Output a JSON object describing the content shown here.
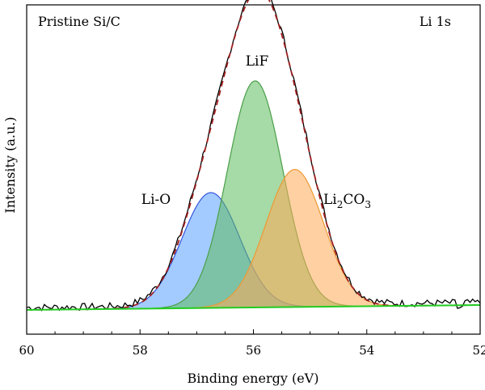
{
  "chart_data": {
    "type": "area",
    "panel_label": "Pristine Si/C",
    "spectrum_label": "Li 1s",
    "xlabel": "Binding energy (eV)",
    "ylabel": "Intensity (a.u.)",
    "xlim": [
      60,
      52
    ],
    "x_reversed": true,
    "x_ticks": [
      "60",
      "58",
      "56",
      "54",
      "52"
    ],
    "y_ticks_labeled": false,
    "grid": false,
    "legend": "none",
    "background": {
      "name": "baseline",
      "color": "#22cc22",
      "y_at_60": 0.0,
      "y_at_52": 0.012
    },
    "peaks": [
      {
        "label": "Li-O",
        "center": 56.75,
        "height": 0.285,
        "fwhm": 1.2,
        "fill": "#5aa0ff",
        "stroke": "#3355dd"
      },
      {
        "label": "LiF",
        "label_prefix": "LiF",
        "center": 55.97,
        "height": 0.56,
        "fwhm": 1.15,
        "fill": "#5dbb5d",
        "stroke": "#4a9f4a"
      },
      {
        "label": "Li2CO3",
        "label_base": "Li",
        "label_sub1": "2",
        "label_mid": "CO",
        "label_sub2": "3",
        "center": 55.27,
        "height": 0.34,
        "fwhm": 1.2,
        "fill": "#ffaa55",
        "stroke": "#ee9933"
      }
    ],
    "envelope": {
      "name": "fit",
      "color": "#a02020",
      "style": "dashed"
    },
    "raw": {
      "name": "raw data",
      "color": "#000000"
    }
  },
  "labels": {
    "panel": "Pristine Si/C",
    "spectrum": "Li 1s",
    "peak_lio": "Li-O",
    "peak_lif": "LiF",
    "peak_li2co3_a": "Li",
    "peak_li2co3_b": "2",
    "peak_li2co3_c": "CO",
    "peak_li2co3_d": "3"
  }
}
